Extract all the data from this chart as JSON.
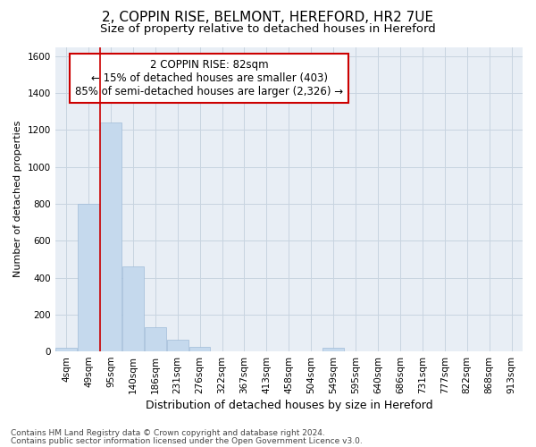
{
  "title_line1": "2, COPPIN RISE, BELMONT, HEREFORD, HR2 7UE",
  "title_line2": "Size of property relative to detached houses in Hereford",
  "xlabel": "Distribution of detached houses by size in Hereford",
  "ylabel": "Number of detached properties",
  "footer_line1": "Contains HM Land Registry data © Crown copyright and database right 2024.",
  "footer_line2": "Contains public sector information licensed under the Open Government Licence v3.0.",
  "annotation_line1": "2 COPPIN RISE: 82sqm",
  "annotation_line2": "← 15% of detached houses are smaller (403)",
  "annotation_line3": "85% of semi-detached houses are larger (2,326) →",
  "bar_categories": [
    "4sqm",
    "49sqm",
    "95sqm",
    "140sqm",
    "186sqm",
    "231sqm",
    "276sqm",
    "322sqm",
    "367sqm",
    "413sqm",
    "458sqm",
    "504sqm",
    "549sqm",
    "595sqm",
    "640sqm",
    "686sqm",
    "731sqm",
    "777sqm",
    "822sqm",
    "868sqm",
    "913sqm"
  ],
  "bar_values": [
    20,
    800,
    1240,
    460,
    130,
    65,
    25,
    0,
    0,
    0,
    0,
    0,
    20,
    0,
    0,
    0,
    0,
    0,
    0,
    0,
    0
  ],
  "bar_color": "#c5d9ed",
  "bar_edge_color": "#a0bcd8",
  "grid_color": "#c8d4e0",
  "background_color": "#e8eef5",
  "vline_color": "#cc0000",
  "vline_x": 1.5,
  "ylim": [
    0,
    1650
  ],
  "yticks": [
    0,
    200,
    400,
    600,
    800,
    1000,
    1200,
    1400,
    1600
  ],
  "title1_fontsize": 11,
  "title2_fontsize": 9.5,
  "xlabel_fontsize": 9,
  "ylabel_fontsize": 8,
  "tick_fontsize": 7.5,
  "footer_fontsize": 6.5,
  "annotation_fontsize": 8.5
}
